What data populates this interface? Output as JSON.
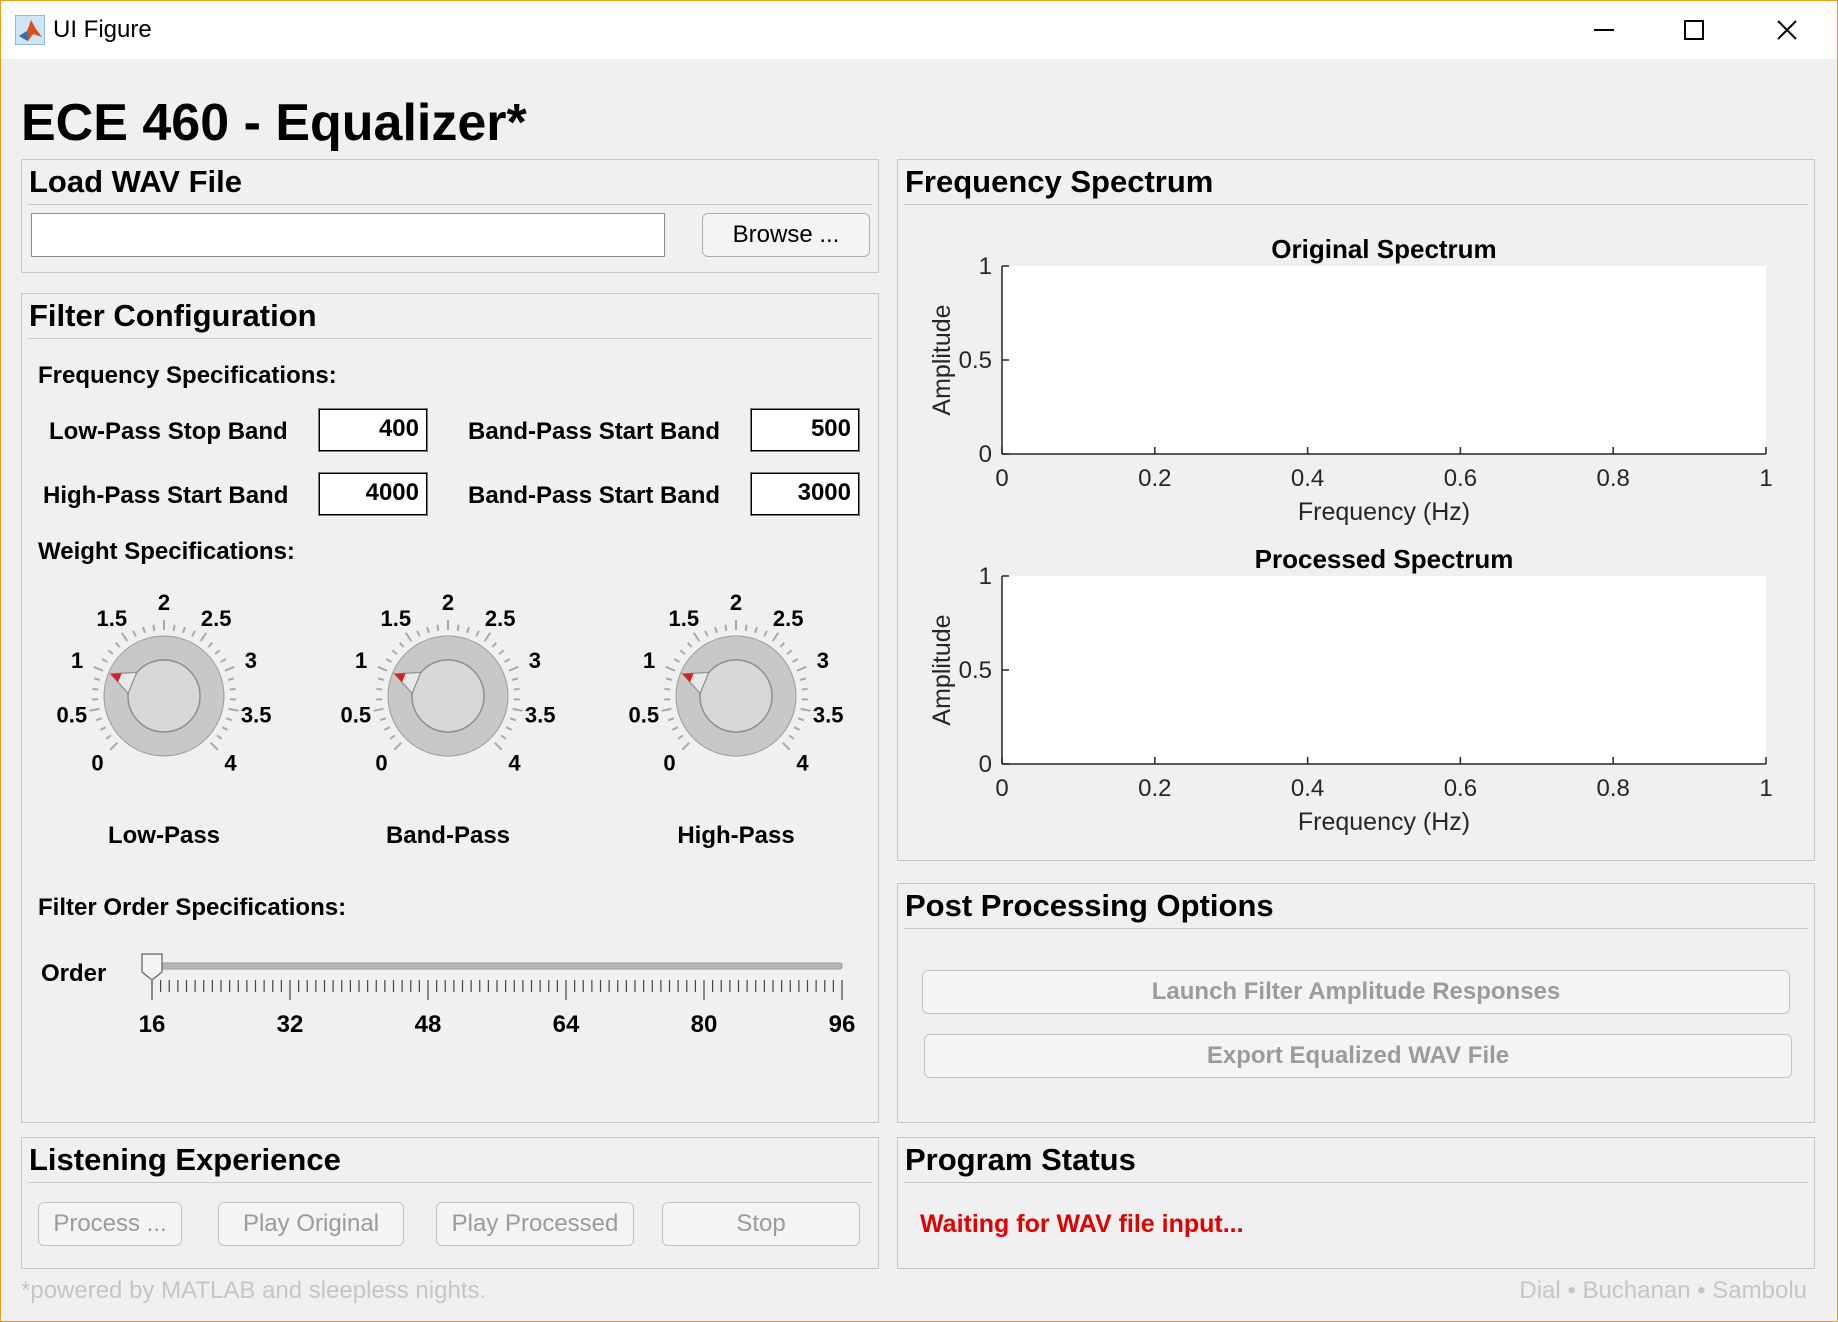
{
  "window": {
    "title": "UI Figure"
  },
  "app": {
    "heading": "ECE 460 - Equalizer*"
  },
  "load_panel": {
    "title": "Load WAV File",
    "file_path": "",
    "browse_label": "Browse ..."
  },
  "filter_panel": {
    "title": "Filter Configuration",
    "freq_spec_label": "Frequency Specifications:",
    "fields": [
      {
        "label": "Low-Pass Stop Band",
        "value": "400"
      },
      {
        "label": "Band-Pass Start Band",
        "value": "500"
      },
      {
        "label": "High-Pass Start Band",
        "value": "4000"
      },
      {
        "label": "Band-Pass Start Band",
        "value": "3000"
      }
    ],
    "weight_spec_label": "Weight Specifications:",
    "knobs": [
      {
        "label": "Low-Pass",
        "value": 1
      },
      {
        "label": "Band-Pass",
        "value": 1
      },
      {
        "label": "High-Pass",
        "value": 1
      }
    ],
    "knob_scale": [
      "0",
      "0.5",
      "1",
      "1.5",
      "2",
      "2.5",
      "3",
      "3.5",
      "4"
    ],
    "order_spec_label": "Filter Order Specifications:",
    "order_label": "Order",
    "order_value": 16,
    "order_ticks": [
      "16",
      "32",
      "48",
      "64",
      "80",
      "96"
    ]
  },
  "spectrum_panel": {
    "title": "Frequency Spectrum",
    "charts": [
      {
        "title": "Original Spectrum",
        "xlabel": "Frequency (Hz)",
        "ylabel": "Amplitude"
      },
      {
        "title": "Processed Spectrum",
        "xlabel": "Frequency (Hz)",
        "ylabel": "Amplitude"
      }
    ],
    "x_ticks": [
      "0",
      "0.2",
      "0.4",
      "0.6",
      "0.8",
      "1"
    ],
    "y_ticks": [
      "0",
      "0.5",
      "1"
    ]
  },
  "post_panel": {
    "title": "Post Processing Options",
    "launch_label": "Launch Filter Amplitude Responses",
    "export_label": "Export Equalized WAV File"
  },
  "listening_panel": {
    "title": "Listening Experience",
    "buttons": [
      "Process ...",
      "Play Original",
      "Play Processed",
      "Stop"
    ]
  },
  "status_panel": {
    "title": "Program Status",
    "message": "Waiting for WAV file input..."
  },
  "footer": {
    "left": "*powered by MATLAB and sleepless nights.",
    "right": "Dial • Buchanan • Sambolu"
  },
  "colors": {
    "status": "#e00000",
    "knob_pointer": "#d82020",
    "window_border": "#e3a21a"
  }
}
